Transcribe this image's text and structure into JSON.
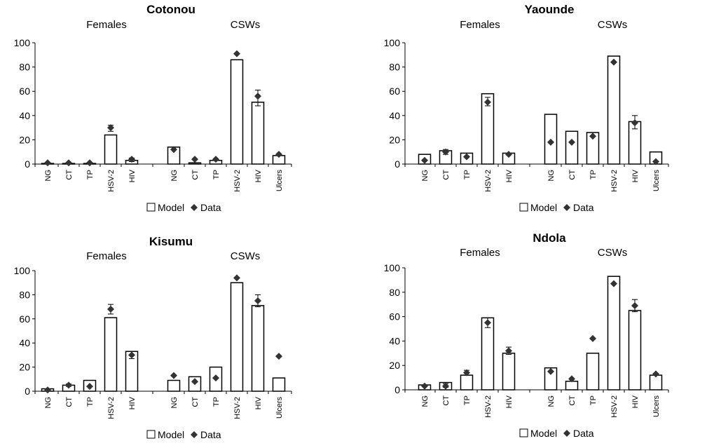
{
  "chart_data": [
    {
      "type": "bar",
      "title": "Cotonou",
      "group_labels": [
        "Females",
        "CSWs"
      ],
      "categories": [
        "NG",
        "CT",
        "TP",
        "HSV-2",
        "HIV",
        "NG",
        "CT",
        "TP",
        "HSV-2",
        "HIV",
        "Ulcers"
      ],
      "ylim": [
        0,
        100
      ],
      "yticks": [
        0,
        20,
        40,
        60,
        80,
        100
      ],
      "grid": false,
      "legend_position": "bottom",
      "series": [
        {
          "name": "Model",
          "kind": "bar",
          "color": "#ffffff",
          "values": [
            0.5,
            0.5,
            0.5,
            24,
            3,
            14,
            1,
            3,
            86,
            51,
            7
          ]
        },
        {
          "name": "Data",
          "kind": "marker",
          "color": "#333333",
          "values": [
            1,
            1,
            1,
            30,
            4,
            12,
            4,
            4,
            91,
            56,
            8
          ],
          "error": [
            null,
            null,
            null,
            [
              27,
              32
            ],
            [
              2,
              5
            ],
            null,
            null,
            null,
            null,
            [
              48,
              61
            ],
            null
          ]
        }
      ]
    },
    {
      "type": "bar",
      "title": "Yaounde",
      "group_labels": [
        "Females",
        "CSWs"
      ],
      "categories": [
        "NG",
        "CT",
        "TP",
        "HSV-2",
        "HIV",
        "NG",
        "CT",
        "TP",
        "HSV-2",
        "HIV",
        "Ulcers"
      ],
      "ylim": [
        0,
        100
      ],
      "yticks": [
        0,
        20,
        40,
        60,
        80,
        100
      ],
      "grid": false,
      "legend_position": "bottom",
      "series": [
        {
          "name": "Model",
          "kind": "bar",
          "color": "#ffffff",
          "values": [
            8,
            11,
            9,
            58,
            9,
            41,
            27,
            26,
            89,
            35,
            10
          ]
        },
        {
          "name": "Data",
          "kind": "marker",
          "color": "#333333",
          "values": [
            3,
            10,
            6,
            51,
            8,
            18,
            18,
            23,
            84,
            34,
            2
          ],
          "error": [
            null,
            [
              8,
              12
            ],
            null,
            [
              48,
              55
            ],
            null,
            null,
            null,
            null,
            null,
            [
              29,
              40
            ],
            null
          ]
        }
      ]
    },
    {
      "type": "bar",
      "title": "Kisumu",
      "group_labels": [
        "Females",
        "CSWs"
      ],
      "categories": [
        "NG",
        "CT",
        "TP",
        "HSV-2",
        "HIV",
        "NG",
        "CT",
        "TP",
        "HSV-2",
        "HIV",
        "Ulcers"
      ],
      "ylim": [
        0,
        100
      ],
      "yticks": [
        0,
        20,
        40,
        60,
        80,
        100
      ],
      "grid": false,
      "legend_position": "bottom",
      "series": [
        {
          "name": "Model",
          "kind": "bar",
          "color": "#ffffff",
          "values": [
            2,
            5,
            9,
            61,
            33,
            9,
            12,
            20,
            90,
            71,
            11
          ]
        },
        {
          "name": "Data",
          "kind": "marker",
          "color": "#333333",
          "values": [
            1,
            5,
            4,
            68,
            30,
            13,
            8,
            11,
            94,
            75,
            29
          ],
          "error": [
            null,
            [
              4,
              6
            ],
            null,
            [
              64,
              72
            ],
            [
              27,
              33
            ],
            null,
            null,
            null,
            null,
            [
              70,
              80
            ],
            null
          ]
        }
      ]
    },
    {
      "type": "bar",
      "title": "Ndola",
      "group_labels": [
        "Females",
        "CSWs"
      ],
      "categories": [
        "NG",
        "CT",
        "TP",
        "HSV-2",
        "HIV",
        "NG",
        "CT",
        "TP",
        "HSV-2",
        "HIV",
        "Ulcers"
      ],
      "ylim": [
        0,
        100
      ],
      "yticks": [
        0,
        20,
        40,
        60,
        80,
        100
      ],
      "grid": false,
      "legend_position": "bottom",
      "series": [
        {
          "name": "Model",
          "kind": "bar",
          "color": "#ffffff",
          "values": [
            4,
            6,
            12,
            59,
            30,
            18,
            7,
            30,
            93,
            65,
            12
          ]
        },
        {
          "name": "Data",
          "kind": "marker",
          "color": "#333333",
          "values": [
            3,
            3,
            14,
            55,
            32,
            15,
            9,
            42,
            87,
            69,
            13
          ],
          "error": [
            null,
            [
              2,
              5
            ],
            [
              12,
              16
            ],
            [
              51,
              59
            ],
            [
              29,
              35
            ],
            null,
            null,
            null,
            null,
            [
              64,
              74
            ],
            null
          ]
        }
      ]
    }
  ]
}
